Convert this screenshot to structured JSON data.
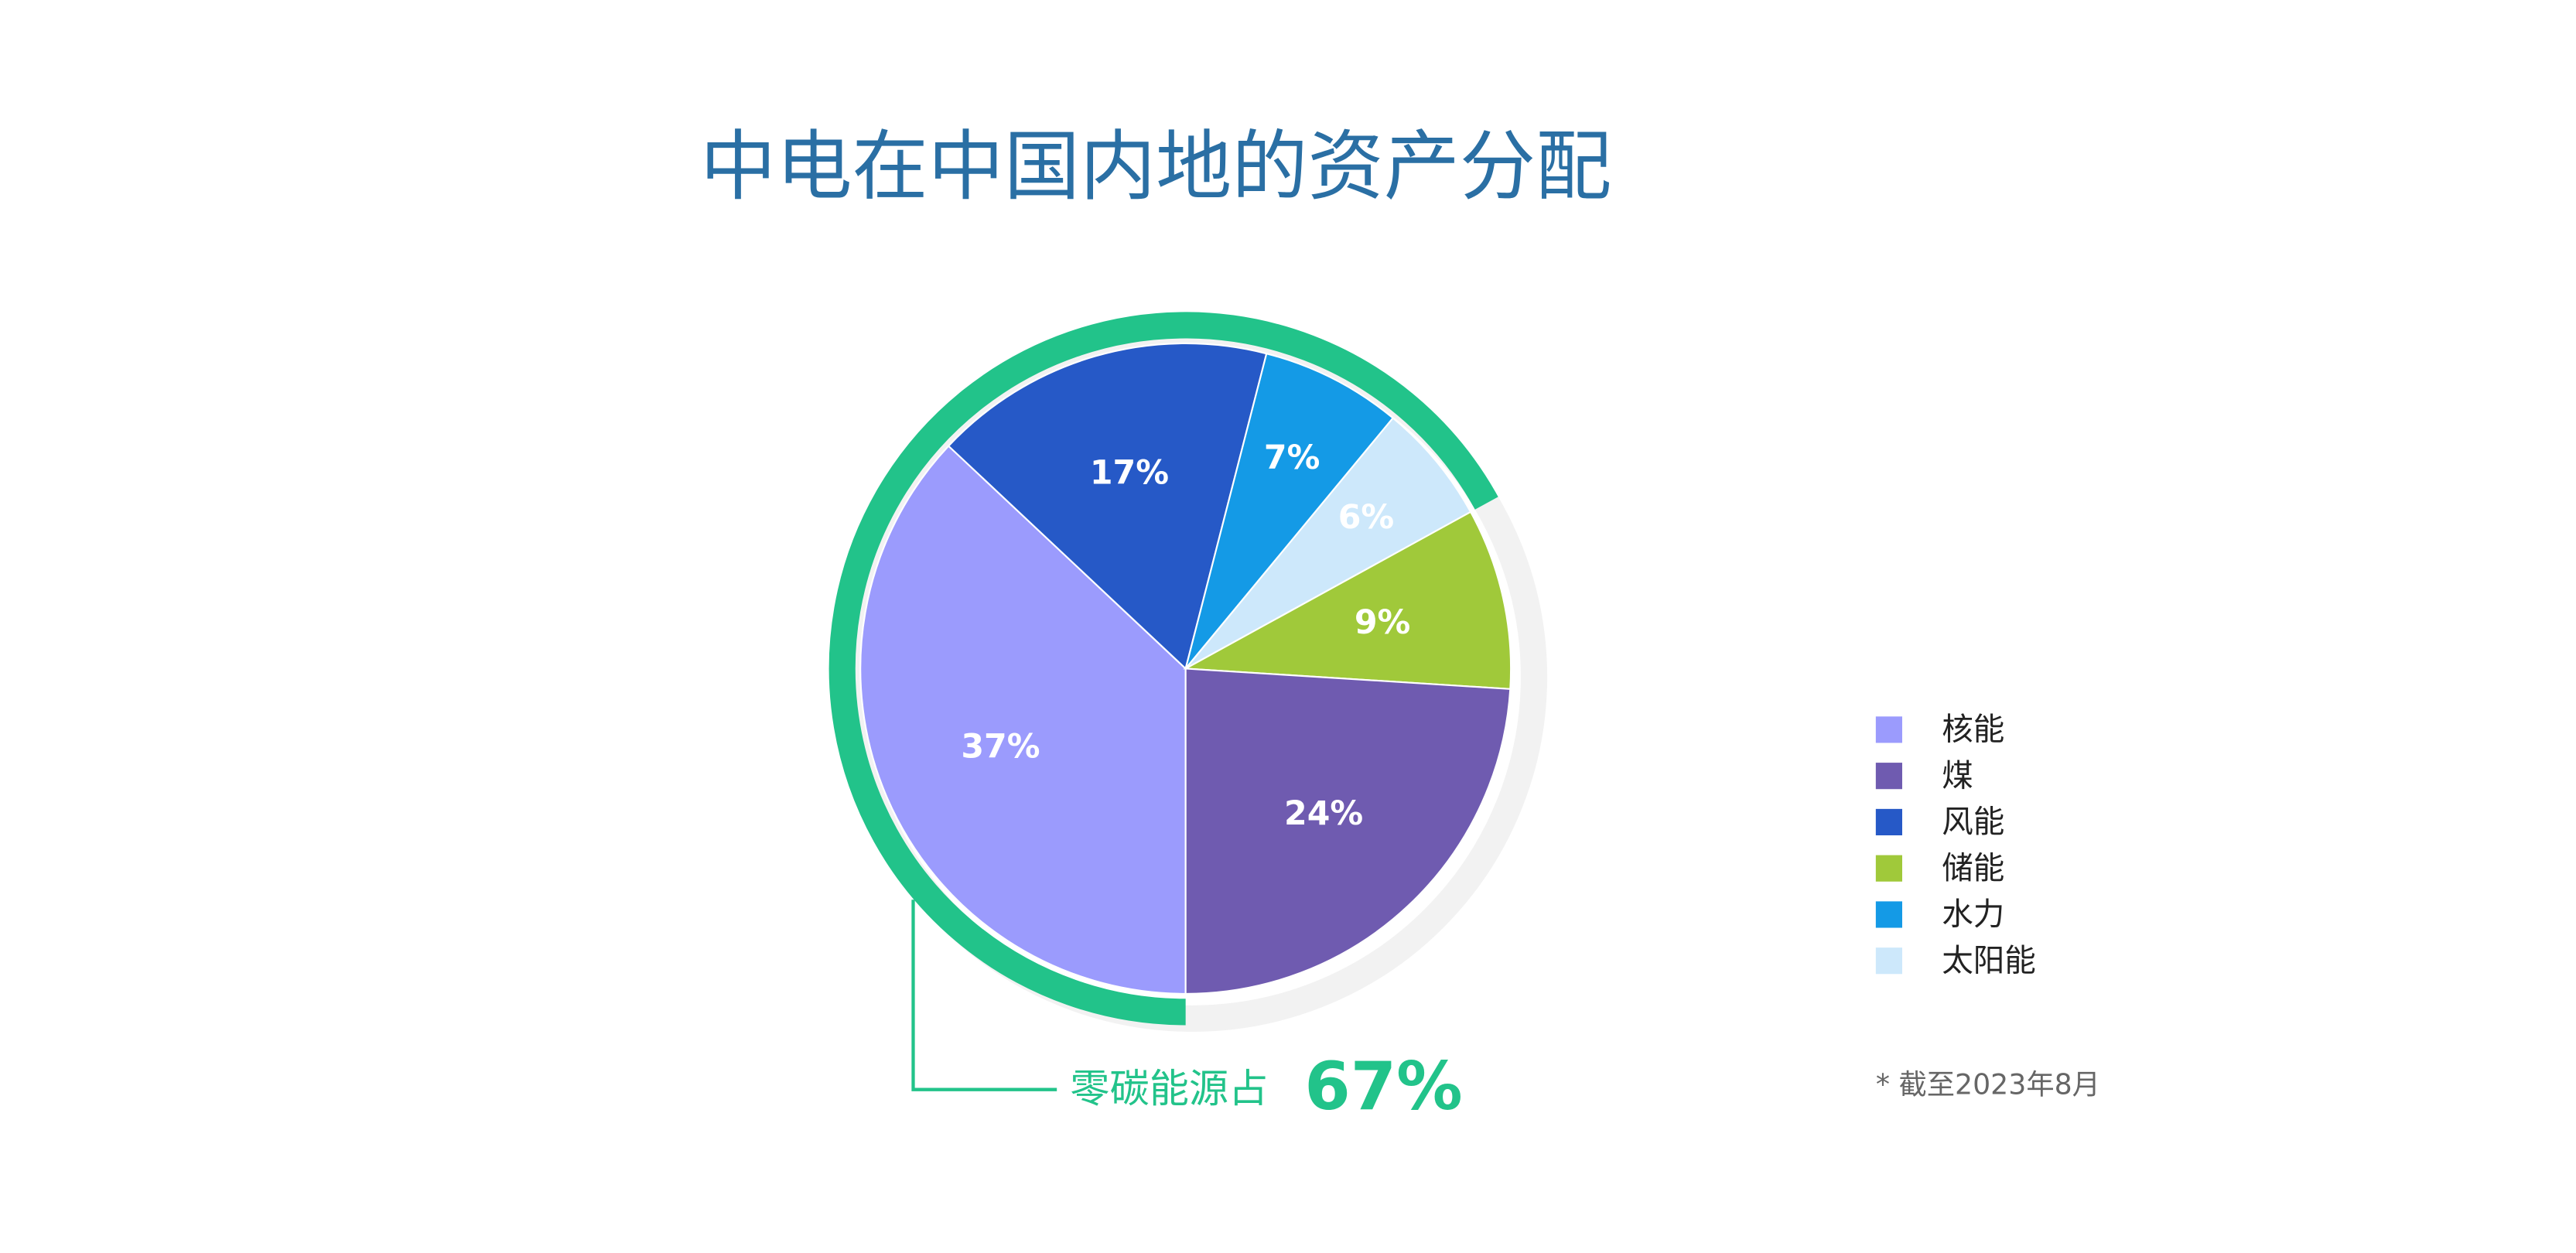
{
  "chart_data": {
    "type": "pie",
    "title": "中电在中国内地的资产分配",
    "categories": [
      "核能",
      "煤",
      "风能",
      "储能",
      "水力",
      "太阳能"
    ],
    "values": [
      37,
      24,
      17,
      9,
      7,
      6
    ],
    "value_labels": [
      "37%",
      "24%",
      "17%",
      "9%",
      "7%",
      "6%"
    ],
    "colors": [
      "#9b9bfd",
      "#6f5bb0",
      "#2659c7",
      "#a0c93a",
      "#149ae6",
      "#cde8fb"
    ],
    "annotation": {
      "text": "零碳能源占",
      "value": 67,
      "value_label": "67%"
    },
    "footnote": "* 截至2023年8月",
    "legend": "right"
  }
}
